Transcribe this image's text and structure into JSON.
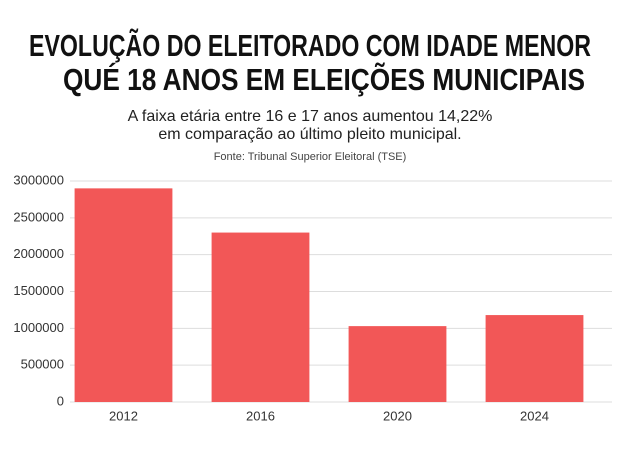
{
  "chart_data": {
    "type": "bar",
    "title": [
      "EVOLUÇÃO DO ELEITORADO COM IDADE MENOR",
      "QUÉ 18 ANOS EM ELEIÇÕES MUNICIPAIS"
    ],
    "subtitle": [
      "A faixa etária entre 16 e 17 anos aumentou 14,22%",
      "em comparação ao último pleito municipal."
    ],
    "source": "Fonte: Tribunal Superior Eleitoral (TSE)",
    "categories": [
      "2012",
      "2016",
      "2020",
      "2024"
    ],
    "values": [
      2900000,
      2300000,
      1030000,
      1180000
    ],
    "color": "#f25757",
    "ylim": [
      0,
      3000000
    ],
    "yticks": [
      0,
      500000,
      1000000,
      1500000,
      2000000,
      2500000,
      3000000
    ],
    "grid": true
  }
}
